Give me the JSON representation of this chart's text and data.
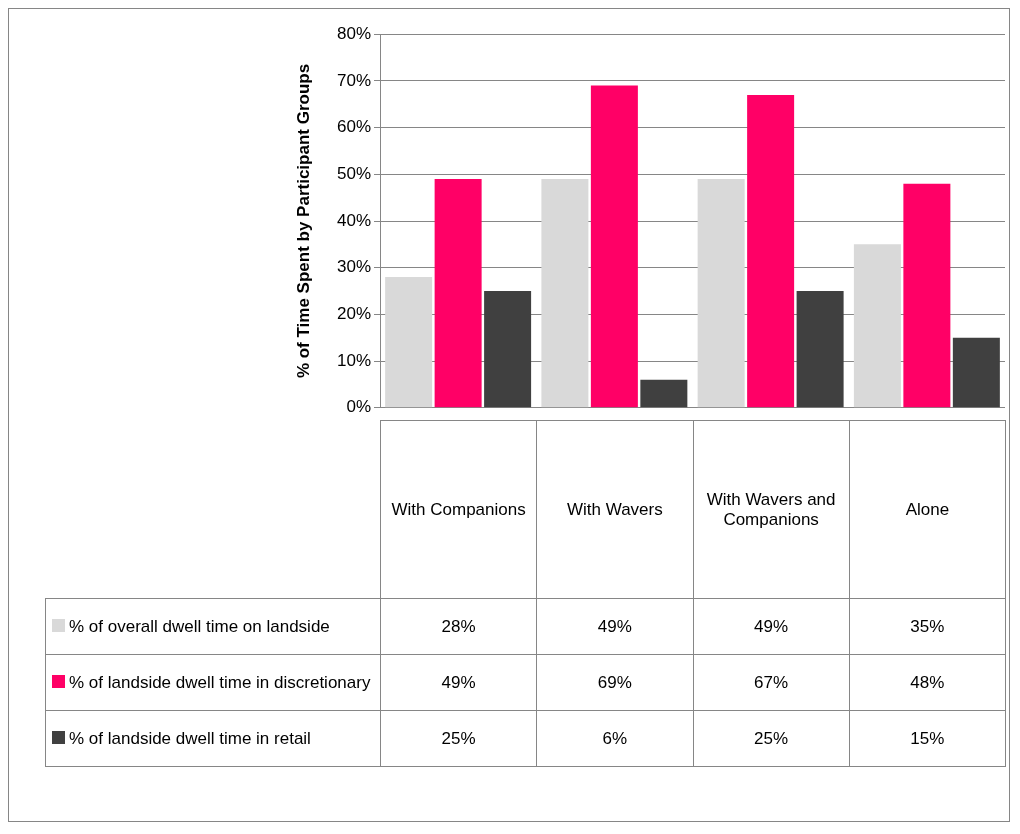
{
  "chart_data": {
    "type": "bar",
    "ylabel": "% of Time Spent by Participant Groups",
    "categories": [
      "With Companions",
      "With Wavers",
      "With Wavers and Companions",
      "Alone"
    ],
    "series": [
      {
        "name": "% of overall dwell time on landside",
        "color": "#d9d9d9",
        "values": [
          28,
          49,
          49,
          35
        ],
        "value_labels": [
          "28%",
          "49%",
          "49%",
          "35%"
        ]
      },
      {
        "name": "% of landside dwell time in discretionary",
        "color": "#ff0066",
        "values": [
          49,
          69,
          67,
          48
        ],
        "value_labels": [
          "49%",
          "69%",
          "67%",
          "48%"
        ]
      },
      {
        "name": "% of landside dwell time in retail",
        "color": "#404040",
        "values": [
          25,
          6,
          25,
          15
        ],
        "value_labels": [
          "25%",
          "6%",
          "25%",
          "15%"
        ]
      }
    ],
    "ylim": [
      0,
      80
    ],
    "yticks": [
      {
        "value": 0,
        "label": "0%"
      },
      {
        "value": 10,
        "label": "10%"
      },
      {
        "value": 20,
        "label": "20%"
      },
      {
        "value": 30,
        "label": "30%"
      },
      {
        "value": 40,
        "label": "40%"
      },
      {
        "value": 50,
        "label": "50%"
      },
      {
        "value": 60,
        "label": "60%"
      },
      {
        "value": 70,
        "label": "70%"
      },
      {
        "value": 80,
        "label": "80%"
      }
    ],
    "grid": "y",
    "legend": "left"
  }
}
